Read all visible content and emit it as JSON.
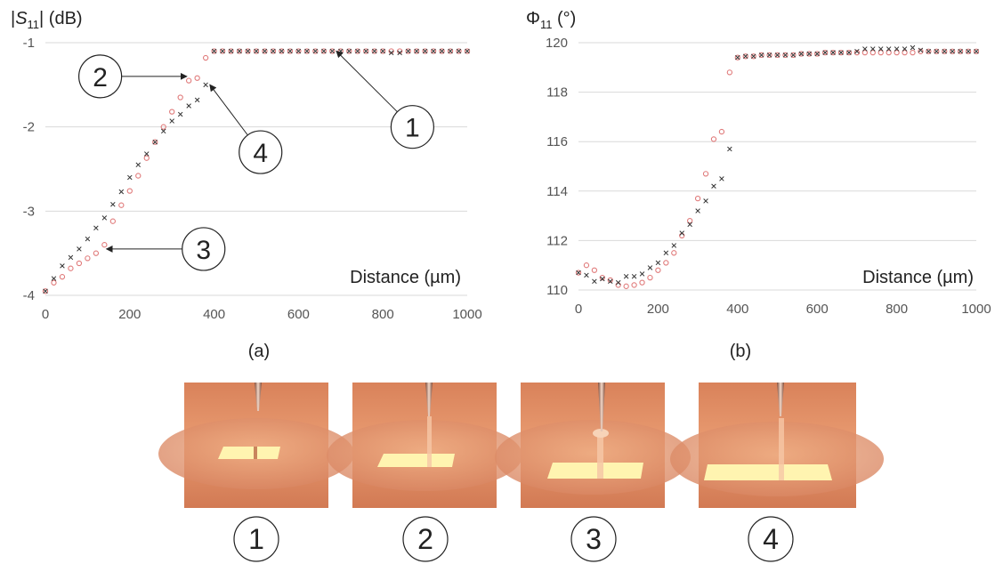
{
  "figure": {
    "captions": [
      "(a)",
      "(b)"
    ],
    "photo_labels": [
      "1",
      "2",
      "3",
      "4"
    ]
  },
  "chart_data": [
    {
      "type": "scatter",
      "title": "",
      "ylabel_prefix": "|",
      "ylabel_var": "S",
      "ylabel_sub": "11",
      "ylabel_suffix": "| (dB)",
      "xlabel": "Distance (µm)",
      "xlim": [
        0,
        1000
      ],
      "ylim": [
        -4,
        -1
      ],
      "xticks": [
        "0",
        "200",
        "400",
        "600",
        "800",
        "1000"
      ],
      "yticks": [
        "-1",
        "-2",
        "-3",
        "-4"
      ],
      "grid": "horizontal",
      "colors": {
        "circle": "#e07a7a",
        "cross": "#333333",
        "grid": "#d9d9d9"
      },
      "series": [
        {
          "marker": "circle",
          "x": [
            0,
            20,
            40,
            60,
            80,
            100,
            120,
            140,
            160,
            180,
            200,
            220,
            240,
            260,
            280,
            300,
            320,
            340,
            360,
            380,
            400,
            420,
            440,
            460,
            480,
            500,
            520,
            540,
            560,
            580,
            600,
            620,
            640,
            660,
            680,
            700,
            720,
            740,
            760,
            780,
            800,
            820,
            840,
            860,
            880,
            900,
            920,
            940,
            960,
            980,
            1000
          ],
          "y": [
            -3.95,
            -3.85,
            -3.78,
            -3.68,
            -3.62,
            -3.56,
            -3.5,
            -3.4,
            -3.12,
            -2.93,
            -2.76,
            -2.58,
            -2.37,
            -2.18,
            -2.0,
            -1.82,
            -1.65,
            -1.45,
            -1.42,
            -1.18,
            -1.1,
            -1.1,
            -1.1,
            -1.1,
            -1.1,
            -1.1,
            -1.1,
            -1.1,
            -1.1,
            -1.1,
            -1.1,
            -1.1,
            -1.1,
            -1.1,
            -1.1,
            -1.1,
            -1.1,
            -1.1,
            -1.1,
            -1.1,
            -1.1,
            -1.1,
            -1.1,
            -1.1,
            -1.1,
            -1.1,
            -1.1,
            -1.1,
            -1.1,
            -1.1,
            -1.1
          ]
        },
        {
          "marker": "cross",
          "x": [
            0,
            20,
            40,
            60,
            80,
            100,
            120,
            140,
            160,
            180,
            200,
            220,
            240,
            260,
            280,
            300,
            320,
            340,
            360,
            380,
            400,
            420,
            440,
            460,
            480,
            500,
            520,
            540,
            560,
            580,
            600,
            620,
            640,
            660,
            680,
            700,
            720,
            740,
            760,
            780,
            800,
            820,
            840,
            860,
            880,
            900,
            920,
            940,
            960,
            980,
            1000
          ],
          "y": [
            -3.95,
            -3.8,
            -3.65,
            -3.55,
            -3.45,
            -3.33,
            -3.2,
            -3.08,
            -2.92,
            -2.77,
            -2.6,
            -2.45,
            -2.32,
            -2.18,
            -2.05,
            -1.93,
            -1.85,
            -1.75,
            -1.68,
            -1.5,
            -1.1,
            -1.1,
            -1.1,
            -1.1,
            -1.1,
            -1.1,
            -1.1,
            -1.1,
            -1.1,
            -1.1,
            -1.1,
            -1.1,
            -1.1,
            -1.1,
            -1.1,
            -1.1,
            -1.1,
            -1.1,
            -1.1,
            -1.1,
            -1.1,
            -1.12,
            -1.12,
            -1.1,
            -1.1,
            -1.1,
            -1.1,
            -1.1,
            -1.1,
            -1.1,
            -1.1
          ]
        }
      ],
      "callouts": [
        {
          "label": "1",
          "circle": [
            870,
            -2.0
          ],
          "arrow_to": [
            690,
            -1.1
          ]
        },
        {
          "label": "2",
          "circle": [
            130,
            -1.4
          ],
          "arrow_to": [
            335,
            -1.4
          ]
        },
        {
          "label": "4",
          "circle": [
            510,
            -2.3
          ],
          "arrow_to": [
            390,
            -1.5
          ]
        },
        {
          "label": "3",
          "circle": [
            375,
            -3.45
          ],
          "arrow_to": [
            145,
            -3.45
          ]
        }
      ]
    },
    {
      "type": "scatter",
      "title": "",
      "ylabel_prefix": "Φ",
      "ylabel_sub": "11",
      "ylabel_suffix": " (°)",
      "xlabel": "Distance (µm)",
      "xlim": [
        0,
        1000
      ],
      "ylim": [
        110,
        120
      ],
      "xticks": [
        "0",
        "200",
        "400",
        "600",
        "800",
        "1000"
      ],
      "yticks": [
        "120",
        "118",
        "116",
        "114",
        "112",
        "110"
      ],
      "grid": "horizontal",
      "colors": {
        "circle": "#e07a7a",
        "cross": "#333333",
        "grid": "#d9d9d9"
      },
      "series": [
        {
          "marker": "circle",
          "x": [
            0,
            20,
            40,
            60,
            80,
            100,
            120,
            140,
            160,
            180,
            200,
            220,
            240,
            260,
            280,
            300,
            320,
            340,
            360,
            380,
            400,
            420,
            440,
            460,
            480,
            500,
            520,
            540,
            560,
            580,
            600,
            620,
            640,
            660,
            680,
            700,
            720,
            740,
            760,
            780,
            800,
            820,
            840,
            860,
            880,
            900,
            920,
            940,
            960,
            980,
            1000
          ],
          "y": [
            110.7,
            111.0,
            110.8,
            110.5,
            110.4,
            110.2,
            110.15,
            110.2,
            110.3,
            110.5,
            110.8,
            111.1,
            111.5,
            112.2,
            112.8,
            113.7,
            114.7,
            116.1,
            116.4,
            118.8,
            119.4,
            119.45,
            119.45,
            119.5,
            119.5,
            119.5,
            119.5,
            119.5,
            119.55,
            119.55,
            119.55,
            119.6,
            119.6,
            119.6,
            119.6,
            119.6,
            119.6,
            119.6,
            119.6,
            119.6,
            119.6,
            119.6,
            119.6,
            119.65,
            119.65,
            119.65,
            119.65,
            119.65,
            119.65,
            119.65,
            119.65
          ]
        },
        {
          "marker": "cross",
          "x": [
            0,
            20,
            40,
            60,
            80,
            100,
            120,
            140,
            160,
            180,
            200,
            220,
            240,
            260,
            280,
            300,
            320,
            340,
            360,
            380,
            400,
            420,
            440,
            460,
            480,
            500,
            520,
            540,
            560,
            580,
            600,
            620,
            640,
            660,
            680,
            700,
            720,
            740,
            760,
            780,
            800,
            820,
            840,
            860,
            880,
            900,
            920,
            940,
            960,
            980,
            1000
          ],
          "y": [
            110.7,
            110.6,
            110.35,
            110.45,
            110.35,
            110.3,
            110.55,
            110.55,
            110.65,
            110.9,
            111.1,
            111.5,
            111.8,
            112.3,
            112.65,
            113.2,
            113.6,
            114.2,
            114.5,
            115.7,
            119.4,
            119.45,
            119.45,
            119.5,
            119.5,
            119.5,
            119.5,
            119.5,
            119.55,
            119.55,
            119.55,
            119.6,
            119.6,
            119.6,
            119.6,
            119.65,
            119.75,
            119.75,
            119.75,
            119.75,
            119.75,
            119.75,
            119.8,
            119.7,
            119.65,
            119.65,
            119.65,
            119.65,
            119.65,
            119.65,
            119.65
          ]
        }
      ]
    }
  ]
}
